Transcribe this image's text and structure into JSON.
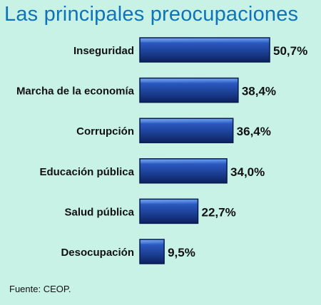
{
  "chart_data": {
    "type": "bar",
    "title": "Las principales preocupaciones",
    "categories": [
      "Inseguridad",
      "Marcha de la economía",
      "Corrupción",
      "Educación pública",
      "Salud pública",
      "Desocupación"
    ],
    "values": [
      50.7,
      38.4,
      36.4,
      34.0,
      22.7,
      9.5
    ],
    "value_labels": [
      "50,7%",
      "38,4%",
      "36,4%",
      "34,0%",
      "22,7%",
      "9,5%"
    ],
    "xlabel": "",
    "ylabel": "",
    "orientation": "horizontal",
    "xlim": [
      0,
      50.7
    ],
    "grid": false,
    "legend": "none"
  },
  "source": "Fuente: CEOP.",
  "colors": {
    "background": "#c9f2e6",
    "title": "#0f73b7",
    "bar_dark": "#102c78",
    "bar_mid": "#2a58c0",
    "bar_light": "#6ea6f7"
  }
}
